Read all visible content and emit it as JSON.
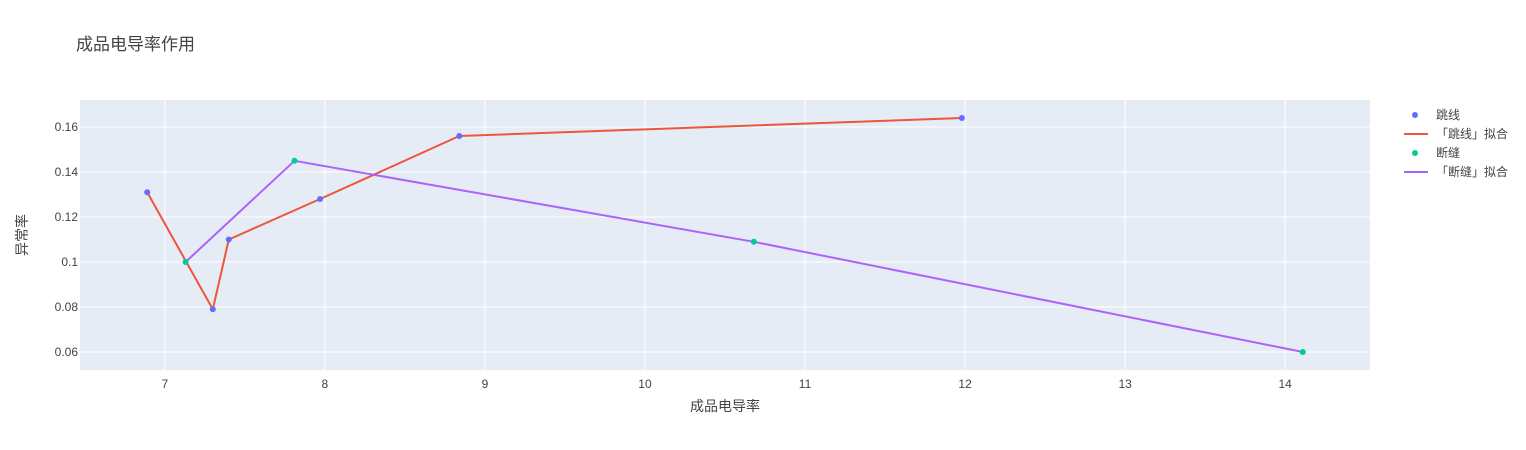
{
  "chart_data": {
    "type": "scatter",
    "title": "成品电导率作用",
    "xlabel": "成品电导率",
    "ylabel": "异常率",
    "xlim": [
      6.47,
      14.53
    ],
    "ylim": [
      0.052,
      0.172
    ],
    "xticks": [
      7,
      8,
      9,
      10,
      11,
      12,
      13,
      14
    ],
    "yticks": [
      0.06,
      0.08,
      0.1,
      0.12,
      0.14,
      0.16
    ],
    "ytick_labels": [
      "0.06",
      "0.08",
      "0.1",
      "0.12",
      "0.14",
      "0.16"
    ],
    "grid": true,
    "legend_position": "right",
    "plot_background": "#e5ecf6",
    "series": [
      {
        "name": "跳线",
        "mode": "markers",
        "color": "#636efa",
        "x": [
          6.89,
          7.3,
          7.4,
          7.97,
          8.84,
          11.98
        ],
        "y": [
          0.131,
          0.079,
          0.11,
          0.128,
          0.156,
          0.164
        ]
      },
      {
        "name": "「跳线」拟合",
        "mode": "lines",
        "color": "#EF553B",
        "x": [
          6.89,
          7.3,
          7.4,
          7.97,
          8.84,
          11.98
        ],
        "y": [
          0.131,
          0.079,
          0.11,
          0.128,
          0.156,
          0.164
        ]
      },
      {
        "name": "断缝",
        "mode": "markers",
        "color": "#00cc96",
        "x": [
          7.13,
          7.81,
          10.68,
          14.11
        ],
        "y": [
          0.1,
          0.145,
          0.109,
          0.06
        ]
      },
      {
        "name": "「断缝」拟合",
        "mode": "lines",
        "color": "#ab63fa",
        "x": [
          7.13,
          7.81,
          10.68,
          14.11
        ],
        "y": [
          0.1,
          0.145,
          0.109,
          0.06
        ]
      }
    ]
  }
}
